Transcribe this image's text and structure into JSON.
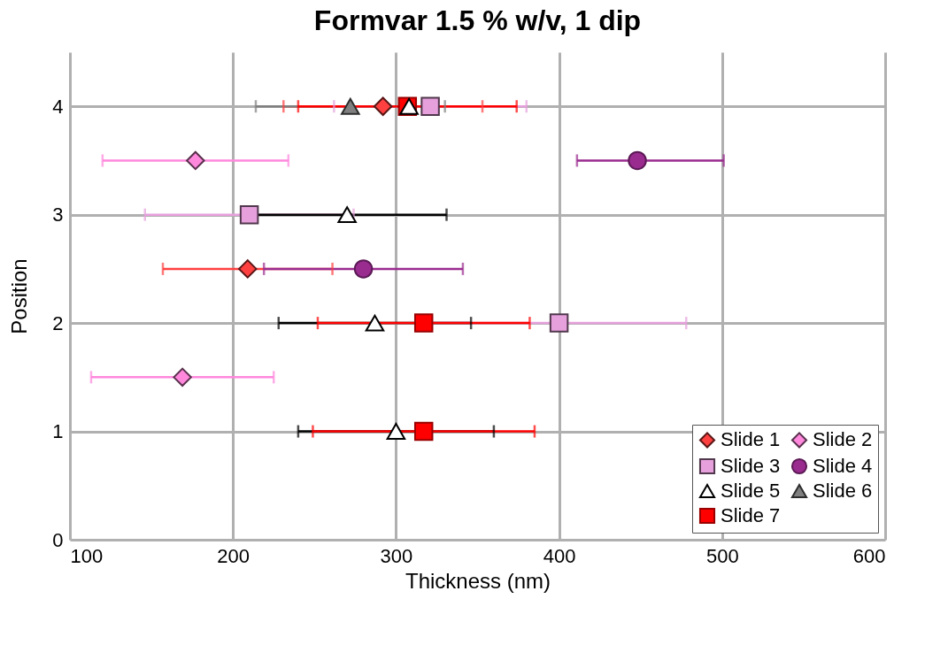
{
  "chart_data": {
    "type": "scatter",
    "title": "Formvar 1.5 % w/v, 1 dip",
    "xlabel": "Thickness (nm)",
    "ylabel": "Position",
    "xlim": [
      100,
      600
    ],
    "xticks": [
      100,
      200,
      300,
      400,
      500,
      600
    ],
    "ylim": [
      0,
      4.5
    ],
    "yticks": [
      0,
      1,
      2,
      3,
      4
    ],
    "grid": true,
    "legend": "bottom right",
    "series": [
      {
        "name": "Slide 1",
        "color": "#ff4040",
        "marker": "diamond",
        "x": [
          292,
          209
        ],
        "values": [
          4,
          2.5
        ],
        "xerrors": [
          61,
          52
        ]
      },
      {
        "name": "Slide 2",
        "color": "#ff88dd",
        "marker": "diamond",
        "x": [
          177,
          169
        ],
        "values": [
          3.5,
          1.5
        ],
        "xerrors": [
          57,
          56
        ]
      },
      {
        "name": "Slide 3",
        "color": "#e6a0dc",
        "marker": "square",
        "x": [
          321,
          210,
          400
        ],
        "values": [
          4,
          3,
          2
        ],
        "xerrors": [
          59,
          64,
          78
        ]
      },
      {
        "name": "Slide 4",
        "color": "#9a2b8f",
        "marker": "circle",
        "x": [
          448,
          280
        ],
        "values": [
          3.5,
          2.5
        ],
        "xerrors": [
          [
            411,
            501
          ],
          61
        ]
      },
      {
        "name": "Slide 5",
        "color": "#ffffff",
        "marker": "triangle",
        "x": [
          308,
          270,
          287,
          300
        ],
        "values": [
          4,
          3,
          2,
          1
        ],
        "xerrors": [
          null,
          61,
          59,
          60
        ]
      },
      {
        "name": "Slide 6",
        "color": "#808080",
        "marker": "triangle",
        "x": [
          272
        ],
        "values": [
          4
        ],
        "xerrors": [
          58
        ]
      },
      {
        "name": "Slide 7",
        "color": "#ff0000",
        "marker": "square",
        "x": [
          307,
          317,
          317
        ],
        "values": [
          4,
          2,
          1
        ],
        "xerrors": [
          67,
          65,
          68
        ]
      }
    ]
  }
}
